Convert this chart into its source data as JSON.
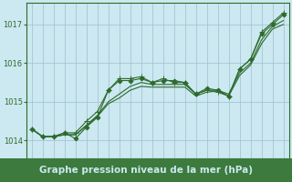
{
  "background_color": "#cce8f0",
  "plot_bg_color": "#cce8f0",
  "grid_color": "#9fbfcf",
  "line_color": "#2d6a2d",
  "xlabel": "Graphe pression niveau de la mer (hPa)",
  "xlabel_fontsize": 7.5,
  "xlabel_bg": "#3d7a3d",
  "xlabel_fg": "#cce8f0",
  "xtick_fontsize": 5.0,
  "ytick_fontsize": 6.0,
  "yticks": [
    1014,
    1015,
    1016,
    1017
  ],
  "ylim": [
    1013.55,
    1017.55
  ],
  "xlim": [
    -0.5,
    23.5
  ],
  "figsize": [
    3.2,
    2.0
  ],
  "dpi": 100,
  "series": [
    {
      "name": "smooth_line",
      "x": [
        0,
        1,
        2,
        3,
        4,
        5,
        6,
        7,
        8,
        9,
        10,
        11,
        12,
        13,
        14,
        15,
        16,
        17,
        18,
        19,
        20,
        21,
        22,
        23
      ],
      "y": [
        1014.3,
        1014.1,
        1014.1,
        1014.15,
        1014.15,
        1014.4,
        1014.65,
        1015.0,
        1015.2,
        1015.4,
        1015.5,
        1015.45,
        1015.45,
        1015.45,
        1015.45,
        1015.2,
        1015.3,
        1015.3,
        1015.2,
        1015.75,
        1016.0,
        1016.6,
        1016.95,
        1017.1
      ],
      "marker": null,
      "linewidth": 0.8,
      "linestyle": "-"
    },
    {
      "name": "line2_no_marker",
      "x": [
        0,
        1,
        2,
        3,
        4,
        5,
        6,
        7,
        8,
        9,
        10,
        11,
        12,
        13,
        14,
        15,
        16,
        17,
        18,
        19,
        20,
        21,
        22,
        23
      ],
      "y": [
        1014.3,
        1014.1,
        1014.1,
        1014.15,
        1014.15,
        1014.38,
        1014.62,
        1014.95,
        1015.1,
        1015.3,
        1015.4,
        1015.38,
        1015.38,
        1015.38,
        1015.38,
        1015.15,
        1015.25,
        1015.28,
        1015.15,
        1015.68,
        1015.95,
        1016.5,
        1016.88,
        1017.0
      ],
      "marker": null,
      "linewidth": 0.8,
      "linestyle": "-"
    },
    {
      "name": "diamond_line",
      "x": [
        0,
        1,
        2,
        3,
        4,
        5,
        6,
        7,
        8,
        9,
        10,
        11,
        12,
        13,
        14,
        15,
        16,
        17,
        18,
        19,
        20,
        21,
        22,
        23
      ],
      "y": [
        1014.3,
        1014.1,
        1014.1,
        1014.2,
        1014.05,
        1014.35,
        1014.6,
        1015.3,
        1015.55,
        1015.55,
        1015.6,
        1015.5,
        1015.55,
        1015.55,
        1015.5,
        1015.2,
        1015.35,
        1015.3,
        1015.15,
        1015.85,
        1016.1,
        1016.75,
        1017.0,
        1017.25
      ],
      "marker": "D",
      "markersize": 2.5,
      "linewidth": 0.8,
      "linestyle": "-"
    },
    {
      "name": "plus_line",
      "x": [
        0,
        1,
        2,
        3,
        4,
        5,
        6,
        7,
        8,
        9,
        10,
        11,
        12,
        13,
        14,
        15,
        16,
        17,
        18,
        19,
        20,
        21,
        22,
        23
      ],
      "y": [
        1014.3,
        1014.1,
        1014.1,
        1014.2,
        1014.2,
        1014.5,
        1014.75,
        1015.3,
        1015.6,
        1015.6,
        1015.65,
        1015.5,
        1015.6,
        1015.5,
        1015.5,
        1015.2,
        1015.3,
        1015.25,
        1015.15,
        1015.85,
        1016.1,
        1016.8,
        1017.05,
        1017.3
      ],
      "marker": "+",
      "markersize": 4,
      "linewidth": 0.8,
      "linestyle": "-"
    }
  ]
}
